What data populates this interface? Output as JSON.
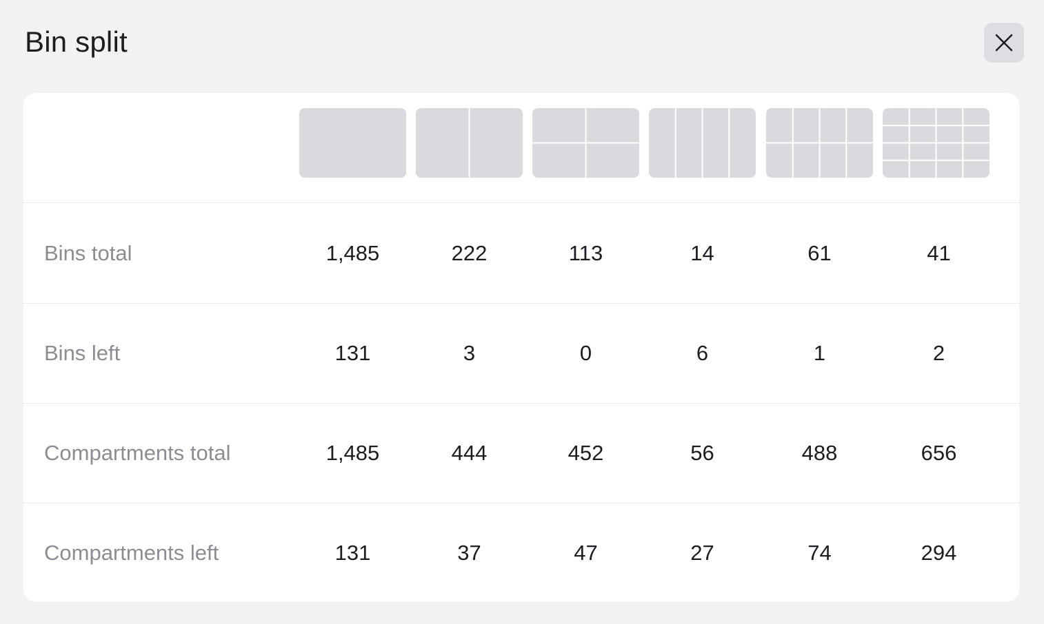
{
  "dialog": {
    "title": "Bin split",
    "close_icon": "close-icon"
  },
  "columns": [
    {
      "split": "1x1"
    },
    {
      "split": "2x1"
    },
    {
      "split": "2x2"
    },
    {
      "split": "4x1"
    },
    {
      "split": "4x2"
    },
    {
      "split": "4x4"
    }
  ],
  "rows": [
    {
      "label": "Bins total",
      "values": [
        "1,485",
        "222",
        "113",
        "14",
        "61",
        "41"
      ]
    },
    {
      "label": "Bins left",
      "values": [
        "131",
        "3",
        "0",
        "6",
        "1",
        "2"
      ]
    },
    {
      "label": "Compartments total",
      "values": [
        "1,485",
        "444",
        "452",
        "56",
        "488",
        "656"
      ]
    },
    {
      "label": "Compartments left",
      "values": [
        "131",
        "37",
        "47",
        "27",
        "74",
        "294"
      ]
    }
  ],
  "colors": {
    "background": "#f1f2f4",
    "card": "#ffffff",
    "icon_fill": "#d8dadd",
    "label": "#8a8d92",
    "value": "#1c1d20"
  }
}
